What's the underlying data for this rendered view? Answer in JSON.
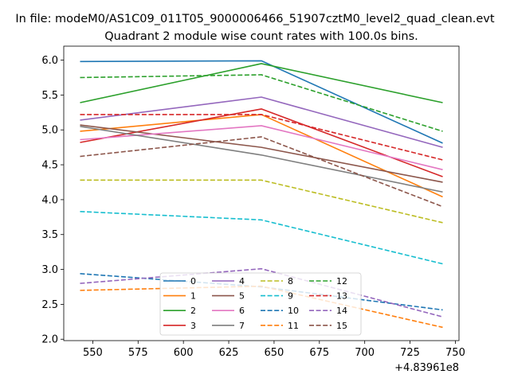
{
  "chart_data": {
    "type": "line",
    "suptitle": "In file: modeM0/AS1C09_011T05_9000006466_51907cztM0_level2_quad_clean.evt",
    "title": "Quadrant 2 module wise count rates with 100.0s bins.",
    "xlabel": "",
    "ylabel": "",
    "x_offset_label": "+4.83961e8",
    "x": [
      543,
      643,
      743
    ],
    "xlim": [
      534,
      752
    ],
    "ylim": [
      1.98,
      6.2
    ],
    "xticks": [
      550,
      575,
      600,
      625,
      650,
      675,
      700,
      725,
      750
    ],
    "yticks": [
      2.0,
      2.5,
      3.0,
      3.5,
      4.0,
      4.5,
      5.0,
      5.5,
      6.0
    ],
    "legend_position": "lower-center",
    "series": [
      {
        "name": "0",
        "color": "#1f77b4",
        "dash": "solid",
        "values": [
          5.98,
          5.99,
          4.81
        ]
      },
      {
        "name": "1",
        "color": "#ff7f0e",
        "dash": "solid",
        "values": [
          4.98,
          5.22,
          4.04
        ]
      },
      {
        "name": "2",
        "color": "#2ca02c",
        "dash": "solid",
        "values": [
          5.39,
          5.95,
          5.39
        ]
      },
      {
        "name": "3",
        "color": "#d62728",
        "dash": "solid",
        "values": [
          4.82,
          5.3,
          4.33
        ]
      },
      {
        "name": "4",
        "color": "#9467bd",
        "dash": "solid",
        "values": [
          5.14,
          5.47,
          4.75
        ]
      },
      {
        "name": "5",
        "color": "#8c564b",
        "dash": "solid",
        "values": [
          5.07,
          4.75,
          4.25
        ]
      },
      {
        "name": "6",
        "color": "#e377c2",
        "dash": "solid",
        "values": [
          4.86,
          5.06,
          4.43
        ]
      },
      {
        "name": "7",
        "color": "#7f7f7f",
        "dash": "solid",
        "values": [
          5.05,
          4.64,
          4.11
        ]
      },
      {
        "name": "8",
        "color": "#bcbd22",
        "dash": "dashed",
        "values": [
          4.28,
          4.28,
          3.67
        ]
      },
      {
        "name": "9",
        "color": "#17becf",
        "dash": "dashed",
        "values": [
          3.83,
          3.71,
          3.08
        ]
      },
      {
        "name": "10",
        "color": "#1f77b4",
        "dash": "dashed",
        "values": [
          2.94,
          2.75,
          2.42
        ]
      },
      {
        "name": "11",
        "color": "#ff7f0e",
        "dash": "dashed",
        "values": [
          2.7,
          2.76,
          2.17
        ]
      },
      {
        "name": "12",
        "color": "#2ca02c",
        "dash": "dashed",
        "values": [
          5.75,
          5.79,
          4.98
        ]
      },
      {
        "name": "13",
        "color": "#d62728",
        "dash": "dashed",
        "values": [
          5.22,
          5.22,
          4.57
        ]
      },
      {
        "name": "14",
        "color": "#9467bd",
        "dash": "dashed",
        "values": [
          2.8,
          3.01,
          2.32
        ]
      },
      {
        "name": "15",
        "color": "#8c564b",
        "dash": "dashed",
        "values": [
          4.62,
          4.9,
          3.9
        ]
      }
    ]
  }
}
